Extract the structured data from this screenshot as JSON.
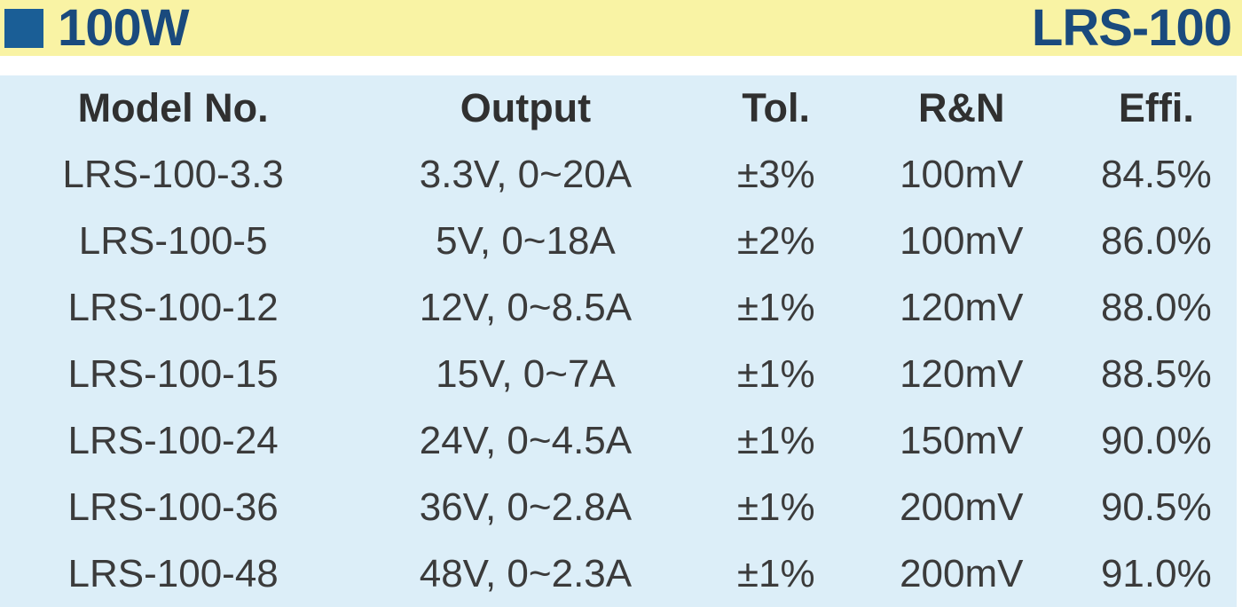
{
  "header": {
    "wattage": "100W",
    "series": "LRS-100",
    "bar_color": "#F9F3A4",
    "accent_square_color": "#1A5E96",
    "title_color": "#1A4A7D"
  },
  "table": {
    "background_color": "#DCEEF8",
    "text_color": "#3B3B3B",
    "columns": [
      "Model No.",
      "Output",
      "Tol.",
      "R&N",
      "Effi."
    ],
    "rows": [
      [
        "LRS-100-3.3",
        "3.3V, 0~20A",
        "±3%",
        "100mV",
        "84.5%"
      ],
      [
        "LRS-100-5",
        "5V, 0~18A",
        "±2%",
        "100mV",
        "86.0%"
      ],
      [
        "LRS-100-12",
        "12V, 0~8.5A",
        "±1%",
        "120mV",
        "88.0%"
      ],
      [
        "LRS-100-15",
        "15V, 0~7A",
        "±1%",
        "120mV",
        "88.5%"
      ],
      [
        "LRS-100-24",
        "24V, 0~4.5A",
        "±1%",
        "150mV",
        "90.0%"
      ],
      [
        "LRS-100-36",
        "36V, 0~2.8A",
        "±1%",
        "200mV",
        "90.5%"
      ],
      [
        "LRS-100-48",
        "48V, 0~2.3A",
        "±1%",
        "200mV",
        "91.0%"
      ]
    ]
  }
}
